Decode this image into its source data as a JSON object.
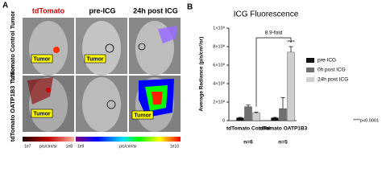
{
  "panel_a": {
    "label": "A",
    "columns": [
      "tdTomato",
      "pre-ICG",
      "24h post ICG"
    ],
    "rows": [
      "tdTomato Control Tumor",
      "tdTomato OATP1B3 Tumor"
    ],
    "callouts": [
      "Tumor",
      "Tumor",
      "Tumor",
      "Tumor"
    ],
    "colorbars": [
      {
        "min": "1e7",
        "unit": "p/s/cm²/sr",
        "max": "1e8"
      },
      {
        "min": "1e9",
        "unit": "p/s/cm²/sr",
        "max": "1e10"
      }
    ]
  },
  "chart_data": {
    "type": "bar",
    "panel_label": "B",
    "title": "ICG Fluorescence",
    "y_label": "Average Radiance (p/s/cm²/sr)",
    "categories": [
      "tdTomato Control",
      "tdTomato OATP1B3"
    ],
    "group_sizes": [
      "n=6",
      "n=5"
    ],
    "series": [
      {
        "name": "pre-ICG",
        "color": "#111111",
        "values": [
          30000000,
          30000000
        ],
        "errors": [
          5000000,
          5000000
        ]
      },
      {
        "name": "0h post ICG",
        "color": "#707070",
        "values": [
          150000000,
          130000000
        ],
        "errors": [
          20000000,
          120000000
        ]
      },
      {
        "name": "24h post ICG",
        "color": "#cfcfcf",
        "values": [
          80000000,
          740000000
        ],
        "errors": [
          10000000,
          60000000
        ]
      }
    ],
    "ylim": [
      0,
      1000000000
    ],
    "yticks": [
      0,
      {
        "value": 200000000,
        "label": "2×10⁸"
      },
      {
        "value": 400000000,
        "label": "4×10⁸"
      },
      {
        "value": 600000000,
        "label": "6×10⁸"
      },
      {
        "value": 800000000,
        "label": "8×10⁸"
      },
      {
        "value": 1000000000,
        "label": "1×10⁹"
      }
    ],
    "bracket_label": "8.9-fold",
    "significance": "****",
    "footnote": "****p<0.0001"
  }
}
